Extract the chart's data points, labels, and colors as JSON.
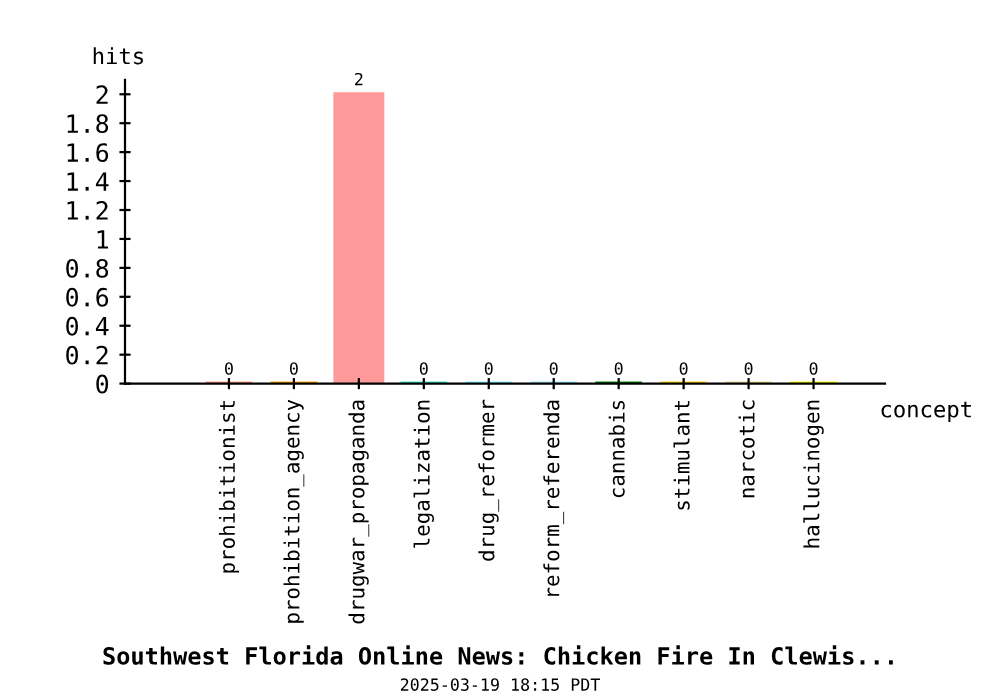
{
  "chart_data": {
    "type": "bar",
    "title": "Southwest Florida Online News: Chicken Fire In Clewis...",
    "ylabel": "hits",
    "xlabel": "concept",
    "annotations": [
      "2025-03-19 18:15 PDT"
    ],
    "categories": [
      "prohibitionist",
      "prohibition_agency",
      "drugwar_propaganda",
      "legalization",
      "drug_reformer",
      "reform_referenda",
      "cannabis",
      "stimulant",
      "narcotic",
      "hallucinogen"
    ],
    "values": [
      0,
      0,
      2,
      0,
      0,
      0,
      0,
      0,
      0,
      0
    ],
    "colors": [
      "#ff9f80",
      "#ffa500",
      "#ff9999",
      "#40e0d0",
      "#80f0ff",
      "#a0e8ff",
      "#008000",
      "#ffd700",
      "#f0d890",
      "#ffff00"
    ],
    "data_labels": true,
    "ylim": [
      0,
      2.1
    ],
    "yticks": [
      0,
      0.2,
      0.4,
      0.6,
      0.8,
      1,
      1.2,
      1.4,
      1.6,
      1.8,
      2
    ],
    "grid": false,
    "legend": false
  }
}
